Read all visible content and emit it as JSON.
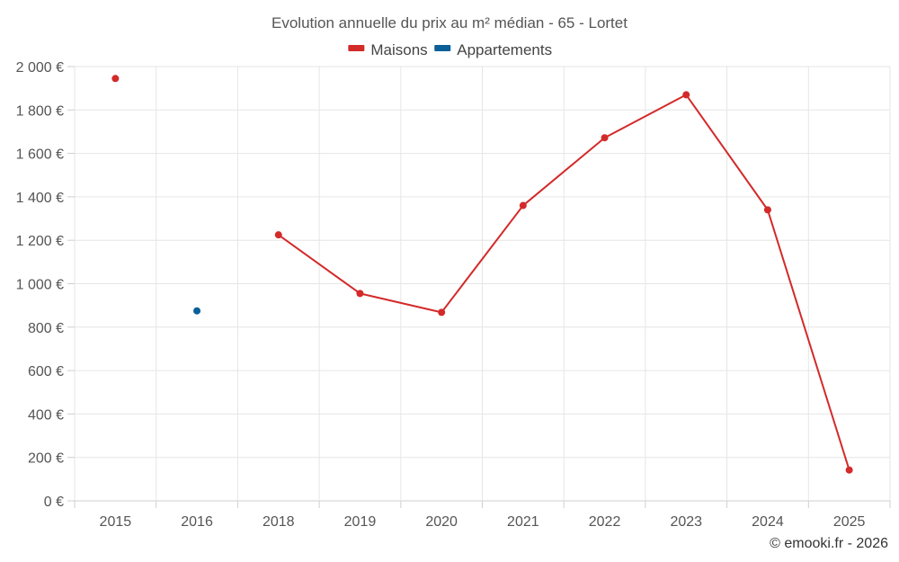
{
  "chart_data": {
    "type": "line",
    "title": "Evolution annuelle du prix au m² médian - 65 - Lortet",
    "categories": [
      "2015",
      "2016",
      "2018",
      "2019",
      "2020",
      "2021",
      "2022",
      "2023",
      "2024",
      "2025"
    ],
    "series": [
      {
        "name": "Maisons",
        "color": "#d32a2a",
        "values": [
          1945,
          null,
          1225,
          955,
          868,
          1360,
          1672,
          1870,
          1340,
          142
        ]
      },
      {
        "name": "Appartements",
        "color": "#0b5f99",
        "values": [
          null,
          875,
          null,
          null,
          null,
          null,
          null,
          null,
          null,
          null
        ]
      }
    ],
    "ylim": [
      0,
      2000
    ],
    "yticks": [
      0,
      200,
      400,
      600,
      800,
      1000,
      1200,
      1400,
      1600,
      1800,
      2000
    ],
    "ytick_labels": [
      "0 €",
      "200 €",
      "400 €",
      "600 €",
      "800 €",
      "1 000 €",
      "1 200 €",
      "1 400 €",
      "1 600 €",
      "1 800 €",
      "2 000 €"
    ],
    "xlabel": "",
    "ylabel": "",
    "legend_position": "top-center",
    "grid": true
  },
  "credit": "© emooki.fr - 2026"
}
